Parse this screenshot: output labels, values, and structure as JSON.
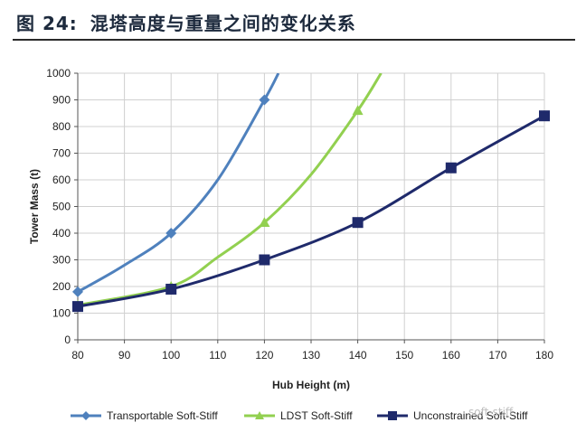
{
  "figure": {
    "number": "图 24:",
    "title": "混塔高度与重量之间的变化关系"
  },
  "watermark": "soft-stiff",
  "chart_data": {
    "type": "line",
    "title": "",
    "xlabel": "Hub Height (m)",
    "ylabel": "Tower Mass (t)",
    "xlim": [
      80,
      180
    ],
    "ylim": [
      0,
      1000
    ],
    "x_ticks": [
      80,
      90,
      100,
      110,
      120,
      130,
      140,
      150,
      160,
      170,
      180
    ],
    "y_ticks": [
      0,
      100,
      200,
      300,
      400,
      500,
      600,
      700,
      800,
      900,
      1000
    ],
    "grid": true,
    "legend_position": "bottom",
    "series": [
      {
        "name": "Transportable Soft-Stiff",
        "color": "#4f81bd",
        "marker": "diamond",
        "markers_x": [
          80,
          100,
          120
        ],
        "x": [
          80,
          90,
          100,
          110,
          120,
          123
        ],
        "y": [
          180,
          280,
          400,
          600,
          900,
          1000
        ]
      },
      {
        "name": "LDST Soft-Stiff",
        "color": "#92d050",
        "marker": "triangle",
        "markers_x": [
          80,
          100,
          120,
          140
        ],
        "x": [
          80,
          100,
          110,
          120,
          130,
          140,
          145
        ],
        "y": [
          130,
          200,
          310,
          440,
          620,
          860,
          1000
        ]
      },
      {
        "name": "Unconstrained Soft-Stiff",
        "color": "#1f2a6b",
        "marker": "square",
        "markers_x": [
          80,
          100,
          120,
          140,
          160,
          180
        ],
        "x": [
          80,
          100,
          120,
          140,
          160,
          180
        ],
        "y": [
          125,
          190,
          300,
          440,
          645,
          840
        ]
      }
    ]
  }
}
